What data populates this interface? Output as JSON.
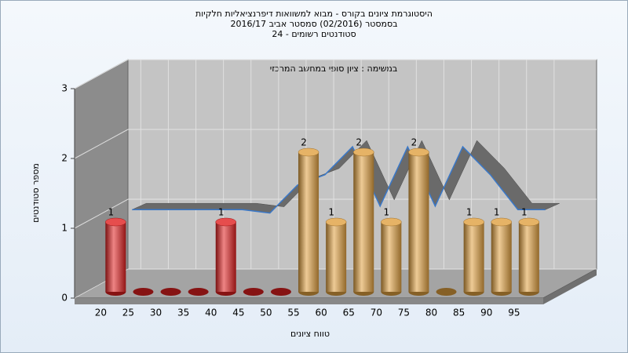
{
  "chart_data": {
    "type": "bar3d",
    "title_lines": [
      "היסטוגרמת ציונים בקורס - מבוא למשוואות דיפרנציאליות חלקיות",
      "בסמסטר (02/2016) סמסטר אביב 2016/17",
      "סטודנטים רשומים - 24"
    ],
    "annotation": "במשימה : ציון סופי במחשב המרכזי",
    "x_label": "טווח ציונים",
    "y_label": "מספר סטודנטים",
    "categories": [
      20,
      25,
      30,
      35,
      40,
      45,
      50,
      55,
      60,
      65,
      70,
      75,
      80,
      85,
      90,
      95
    ],
    "values": [
      1,
      0,
      0,
      0,
      1,
      0,
      0,
      2,
      1,
      2,
      1,
      2,
      0,
      1,
      1,
      1
    ],
    "colors": [
      "#e02020",
      "#e02020",
      "#e02020",
      "#e02020",
      "#e02020",
      "#e02020",
      "#e02020",
      "#e0a040",
      "#e0a040",
      "#e0a040",
      "#e0a040",
      "#e0a040",
      "#e0a040",
      "#e0a040",
      "#e0a040",
      "#e0a040"
    ],
    "trend": {
      "values": [
        1.2,
        1.2,
        1.2,
        1.2,
        1.2,
        1.15,
        1.55,
        1.7,
        2.1,
        1.25,
        2.1,
        1.25,
        2.1,
        1.7,
        1.2,
        1.2
      ],
      "color": "#6a6a6a"
    },
    "ylim": [
      0,
      3
    ],
    "yticks": [
      0,
      1,
      2,
      3
    ],
    "grid": true
  }
}
